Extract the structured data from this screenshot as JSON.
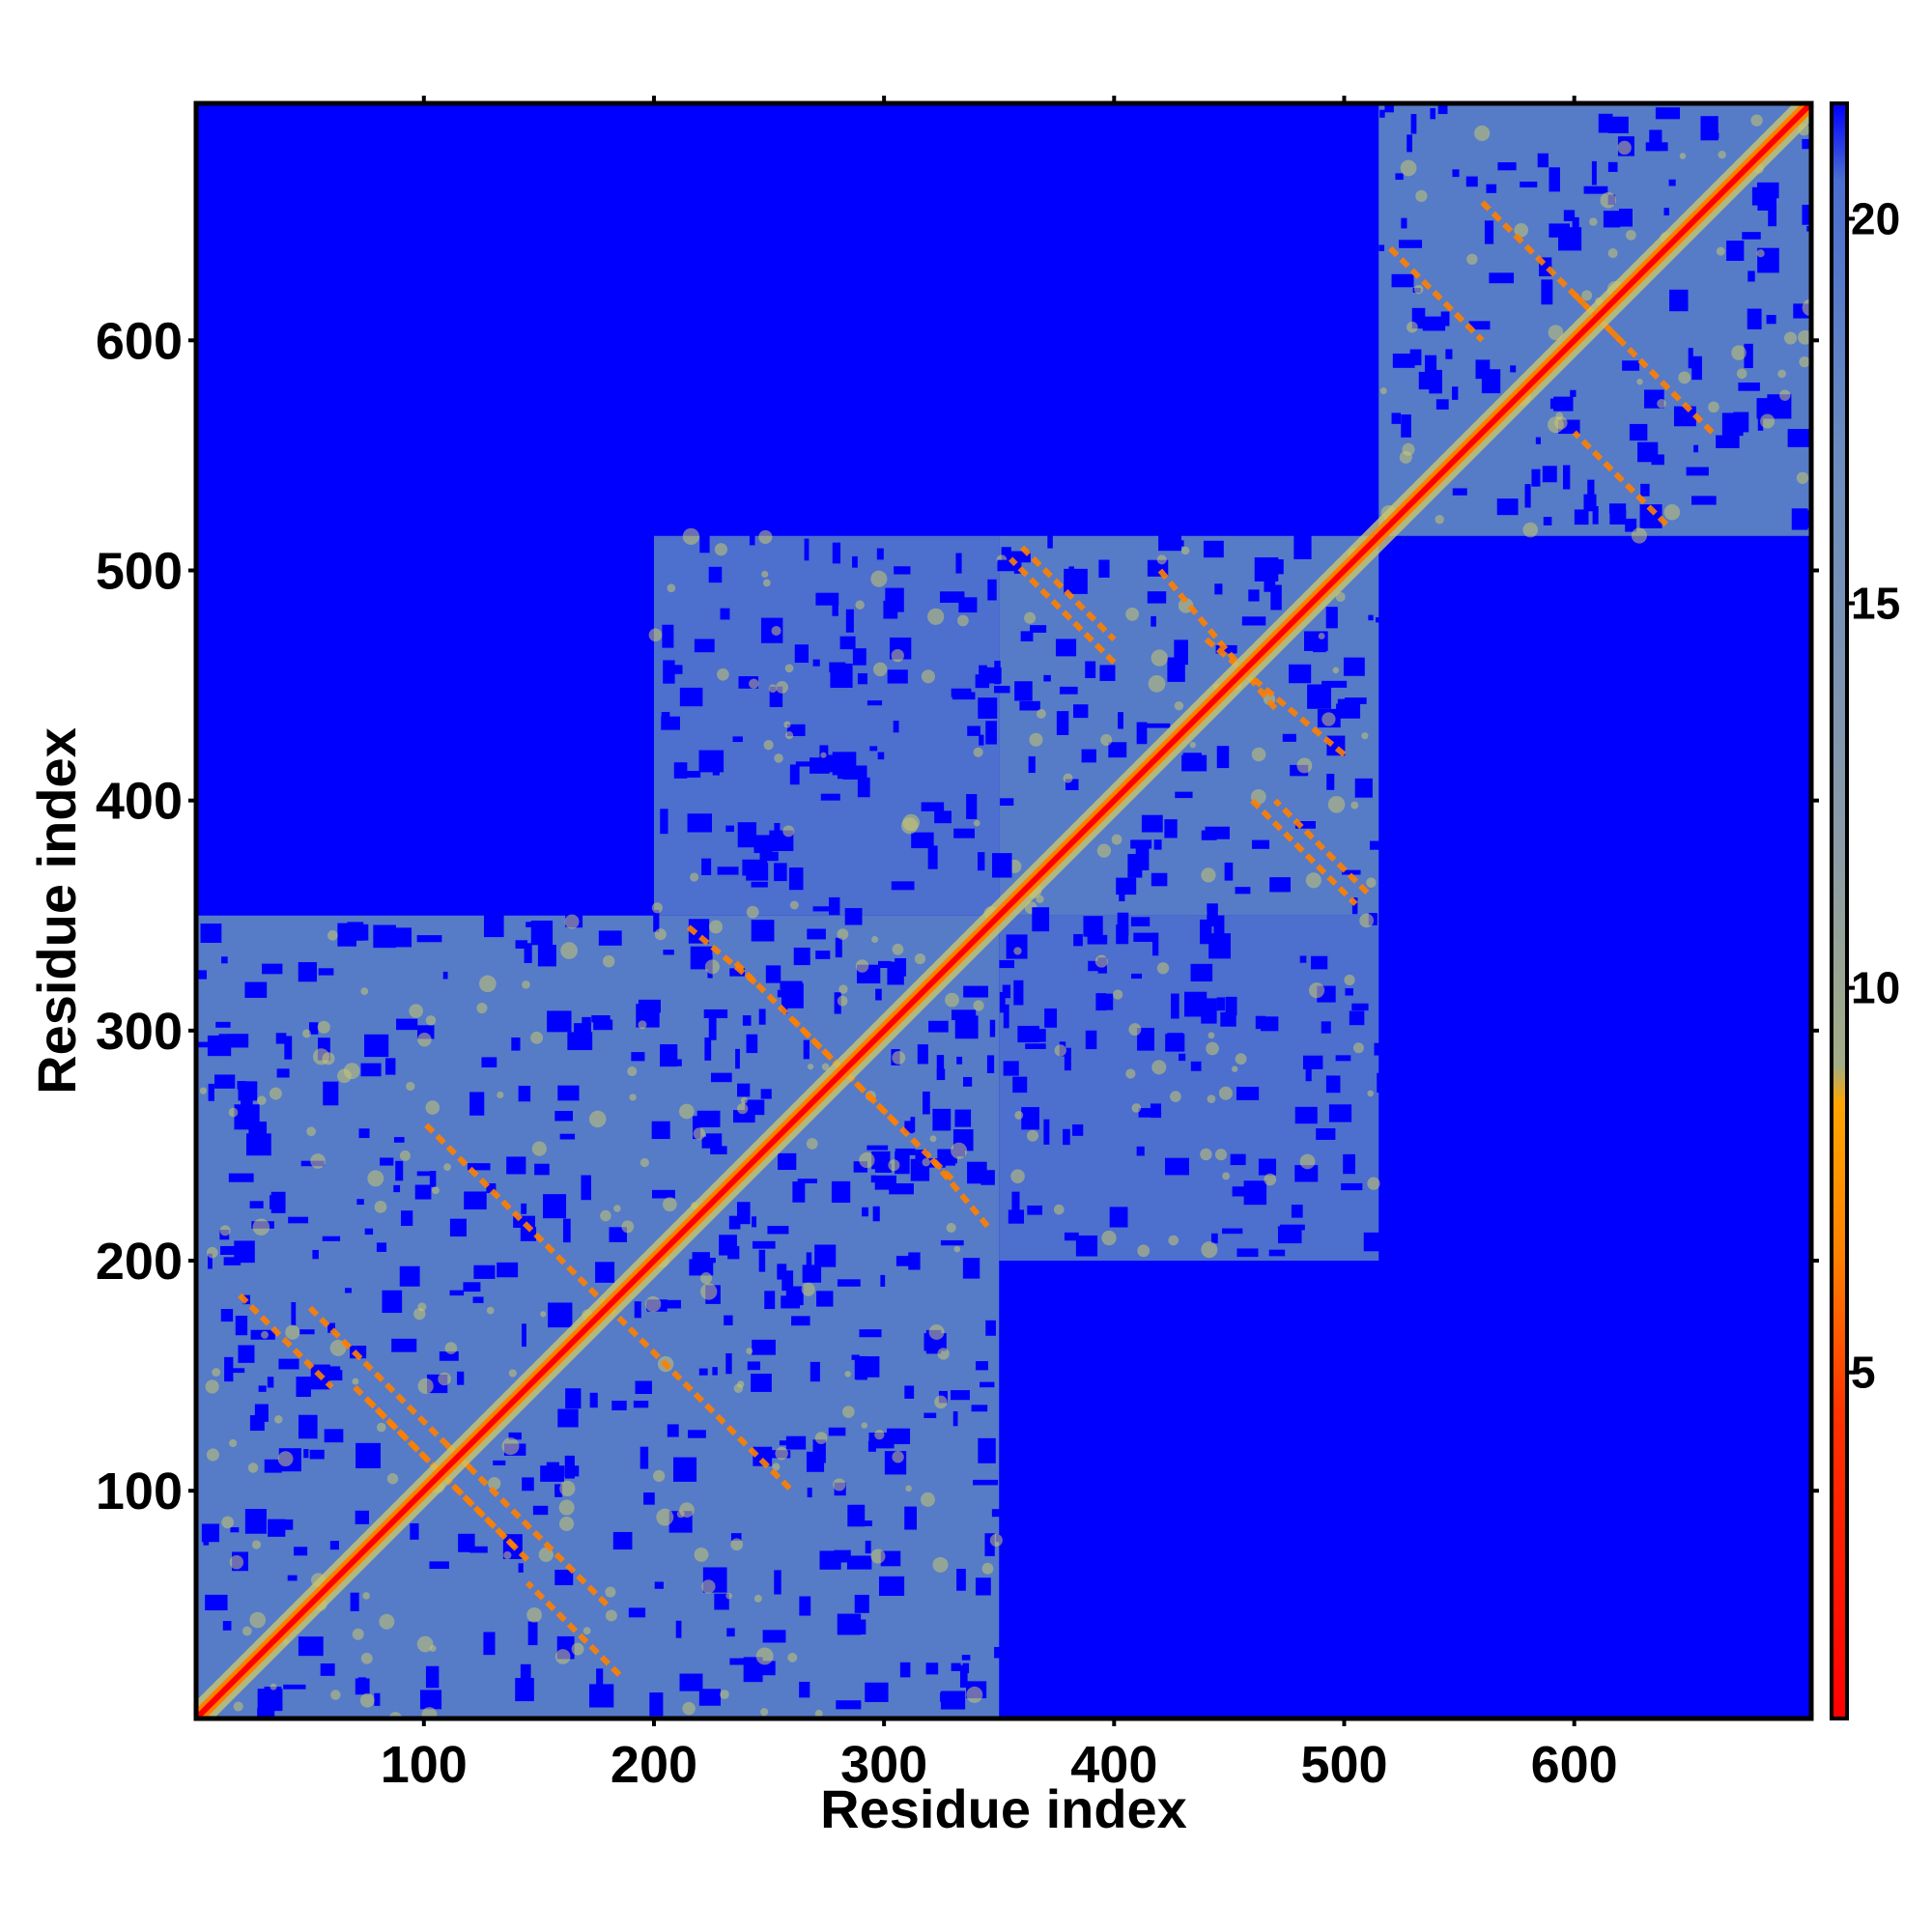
{
  "chart_data": {
    "type": "heatmap",
    "title": "",
    "xlabel": "Residue index",
    "ylabel": "Residue index",
    "xlim": [
      1,
      703
    ],
    "ylim": [
      1,
      703
    ],
    "x_ticks": [
      100,
      200,
      300,
      400,
      500,
      600
    ],
    "y_ticks": [
      100,
      200,
      300,
      400,
      500,
      600
    ],
    "colorbar": {
      "ticks": [
        5,
        10,
        15,
        20
      ],
      "range": [
        0.5,
        21.5
      ],
      "stops": [
        {
          "value": 0.5,
          "color": "#ff0000"
        },
        {
          "value": 4.5,
          "color": "#ff3300"
        },
        {
          "value": 6.5,
          "color": "#ff8000"
        },
        {
          "value": 8.5,
          "color": "#ffa500"
        },
        {
          "value": 9.0,
          "color": "#a3ad86"
        },
        {
          "value": 12.0,
          "color": "#8a9aa8"
        },
        {
          "value": 17.0,
          "color": "#6a8cc0"
        },
        {
          "value": 20.5,
          "color": "#4a6fd0"
        },
        {
          "value": 21.5,
          "color": "#0000ff"
        }
      ]
    },
    "background_value": 21,
    "colors": {
      "far": "#0000ff",
      "mid": "#5b82c4",
      "near": "#c8c870",
      "contact": "#ff8000",
      "diagonal": "#ff0000"
    },
    "domains": [
      {
        "range": [
          1,
          350
        ],
        "fill": "mid"
      },
      {
        "range": [
          350,
          515
        ],
        "fill": "mid"
      },
      {
        "range": [
          515,
          703
        ],
        "fill": "mid"
      }
    ],
    "inter_domain_blocks": [
      {
        "x": [
          200,
          350
        ],
        "y": [
          350,
          515
        ]
      },
      {
        "x": [
          350,
          515
        ],
        "y": [
          200,
          350
        ]
      }
    ],
    "contact_lines": [
      {
        "x": [
          20,
          60
        ],
        "y": [
          145,
          185
        ]
      },
      {
        "x": [
          70,
          140
        ],
        "y": [
          75,
          145
        ]
      },
      {
        "x": [
          110,
          180
        ],
        "y": [
          50,
          120
        ]
      },
      {
        "x": [
          180,
          260
        ],
        "y": [
          100,
          180
        ]
      },
      {
        "x": [
          215,
          245
        ],
        "y": [
          320,
          345
        ]
      },
      {
        "x": [
          260,
          330
        ],
        "y": [
          235,
          305
        ]
      },
      {
        "x": [
          360,
          400
        ],
        "y": [
          470,
          510
        ]
      },
      {
        "x": [
          420,
          470
        ],
        "y": [
          440,
          500
        ]
      },
      {
        "x": [
          460,
          505
        ],
        "y": [
          355,
          400
        ]
      },
      {
        "x": [
          520,
          560
        ],
        "y": [
          600,
          640
        ]
      },
      {
        "x": [
          600,
          660
        ],
        "y": [
          560,
          620
        ]
      }
    ]
  }
}
